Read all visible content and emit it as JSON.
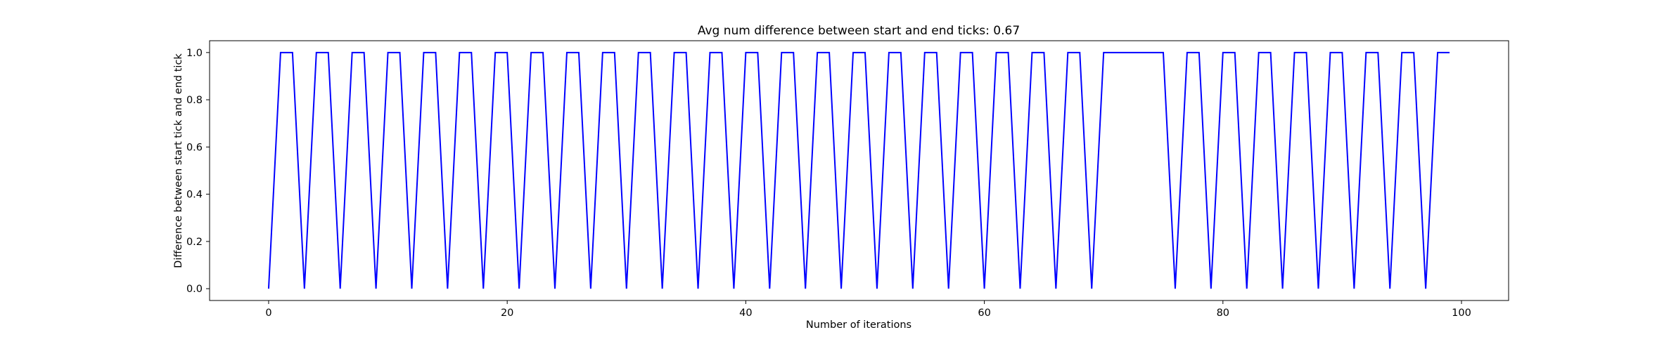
{
  "chart_data": {
    "type": "line",
    "title": "Avg num difference between start and end ticks: 0.67",
    "xlabel": "Number of iterations",
    "ylabel": "Difference between start tick and end tick",
    "xlim": [
      -4.95,
      103.95
    ],
    "ylim": [
      -0.05,
      1.05
    ],
    "x_ticks": [
      0,
      20,
      40,
      60,
      80,
      100
    ],
    "y_ticks": [
      0.0,
      0.2,
      0.4,
      0.6,
      0.8,
      1.0
    ],
    "x_tick_labels": [
      "0",
      "20",
      "40",
      "60",
      "80",
      "100"
    ],
    "y_tick_labels": [
      "0.0",
      "0.2",
      "0.4",
      "0.6",
      "0.8",
      "1.0"
    ],
    "grid": false,
    "series": [
      {
        "color": "#0000ff",
        "x": [
          0,
          1,
          2,
          3,
          4,
          5,
          6,
          7,
          8,
          9,
          10,
          11,
          12,
          13,
          14,
          15,
          16,
          17,
          18,
          19,
          20,
          21,
          22,
          23,
          24,
          25,
          26,
          27,
          28,
          29,
          30,
          31,
          32,
          33,
          34,
          35,
          36,
          37,
          38,
          39,
          40,
          41,
          42,
          43,
          44,
          45,
          46,
          47,
          48,
          49,
          50,
          51,
          52,
          53,
          54,
          55,
          56,
          57,
          58,
          59,
          60,
          61,
          62,
          63,
          64,
          65,
          66,
          67,
          68,
          69,
          70,
          71,
          72,
          73,
          74,
          75,
          76,
          77,
          78,
          79,
          80,
          81,
          82,
          83,
          84,
          85,
          86,
          87,
          88,
          89,
          90,
          91,
          92,
          93,
          94,
          95,
          96,
          97,
          98,
          99
        ],
        "y": [
          0,
          1,
          1,
          0,
          1,
          1,
          0,
          1,
          1,
          0,
          1,
          1,
          0,
          1,
          1,
          0,
          1,
          1,
          0,
          1,
          1,
          0,
          1,
          1,
          0,
          1,
          1,
          0,
          1,
          1,
          0,
          1,
          1,
          0,
          1,
          1,
          0,
          1,
          1,
          0,
          1,
          1,
          0,
          1,
          1,
          0,
          1,
          1,
          0,
          1,
          1,
          0,
          1,
          1,
          0,
          1,
          1,
          0,
          1,
          1,
          0,
          1,
          1,
          0,
          1,
          1,
          0,
          1,
          1,
          0,
          1,
          1,
          1,
          1,
          1,
          1,
          0,
          1,
          1,
          0,
          1,
          1,
          0,
          1,
          1,
          0,
          1,
          1,
          0,
          1,
          1,
          0,
          1,
          1,
          0,
          1,
          1,
          0,
          1,
          1
        ]
      }
    ]
  }
}
